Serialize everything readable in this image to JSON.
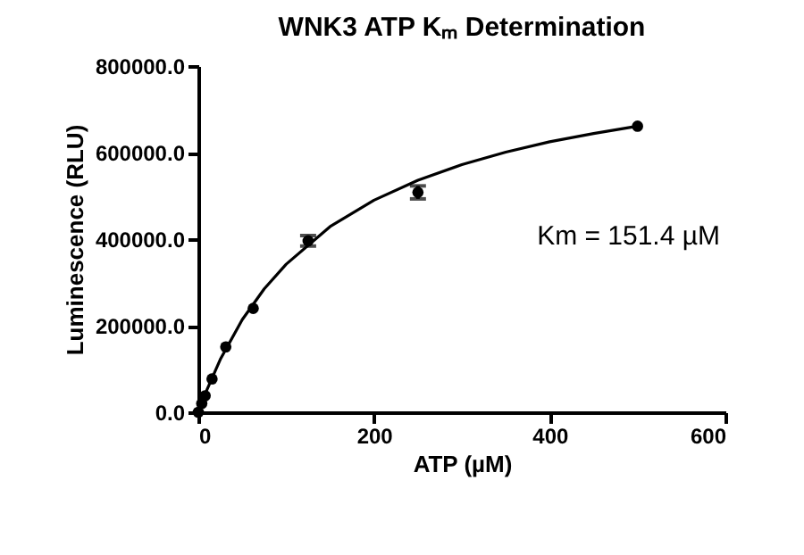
{
  "chart_data": {
    "type": "scatter",
    "title": "WNK3 ATP Kₘ Determination",
    "xlabel": "ATP (µM)",
    "ylabel": "Luminescence (RLU)",
    "xlim": [
      0,
      600
    ],
    "xticks": [
      0,
      200,
      400,
      600
    ],
    "ylim": [
      0,
      800000
    ],
    "yticks": [
      {
        "value": 0,
        "label": "0.0"
      },
      {
        "value": 200000,
        "label": "200000.0"
      },
      {
        "value": 400000,
        "label": "400000.0"
      },
      {
        "value": 600000,
        "label": "600000.0"
      },
      {
        "value": 800000,
        "label": "800000.0"
      }
    ],
    "grid": false,
    "marker": "circle",
    "annotations": [
      "Km = 151.4 µM"
    ],
    "series": [
      {
        "color": "#000000",
        "x": [
          0,
          3.9,
          7.8,
          15.6,
          31.25,
          62.5,
          125,
          250,
          500
        ],
        "values": [
          0,
          20000,
          38000,
          77000,
          151000,
          240000,
          396000,
          508000,
          661000
        ],
        "errors": [
          null,
          null,
          null,
          null,
          null,
          null,
          12000,
          15000,
          null
        ]
      },
      {
        "type": "line",
        "color": "#000000",
        "line_style": "solid",
        "marker": "none",
        "x": [
          0,
          10,
          25,
          50,
          75,
          100,
          150,
          200,
          250,
          300,
          350,
          400,
          450,
          500
        ],
        "values": [
          0,
          53000,
          122000,
          214000,
          285000,
          342000,
          429000,
          490000,
          536000,
          572000,
          601000,
          625000,
          644000,
          661000
        ]
      }
    ]
  }
}
